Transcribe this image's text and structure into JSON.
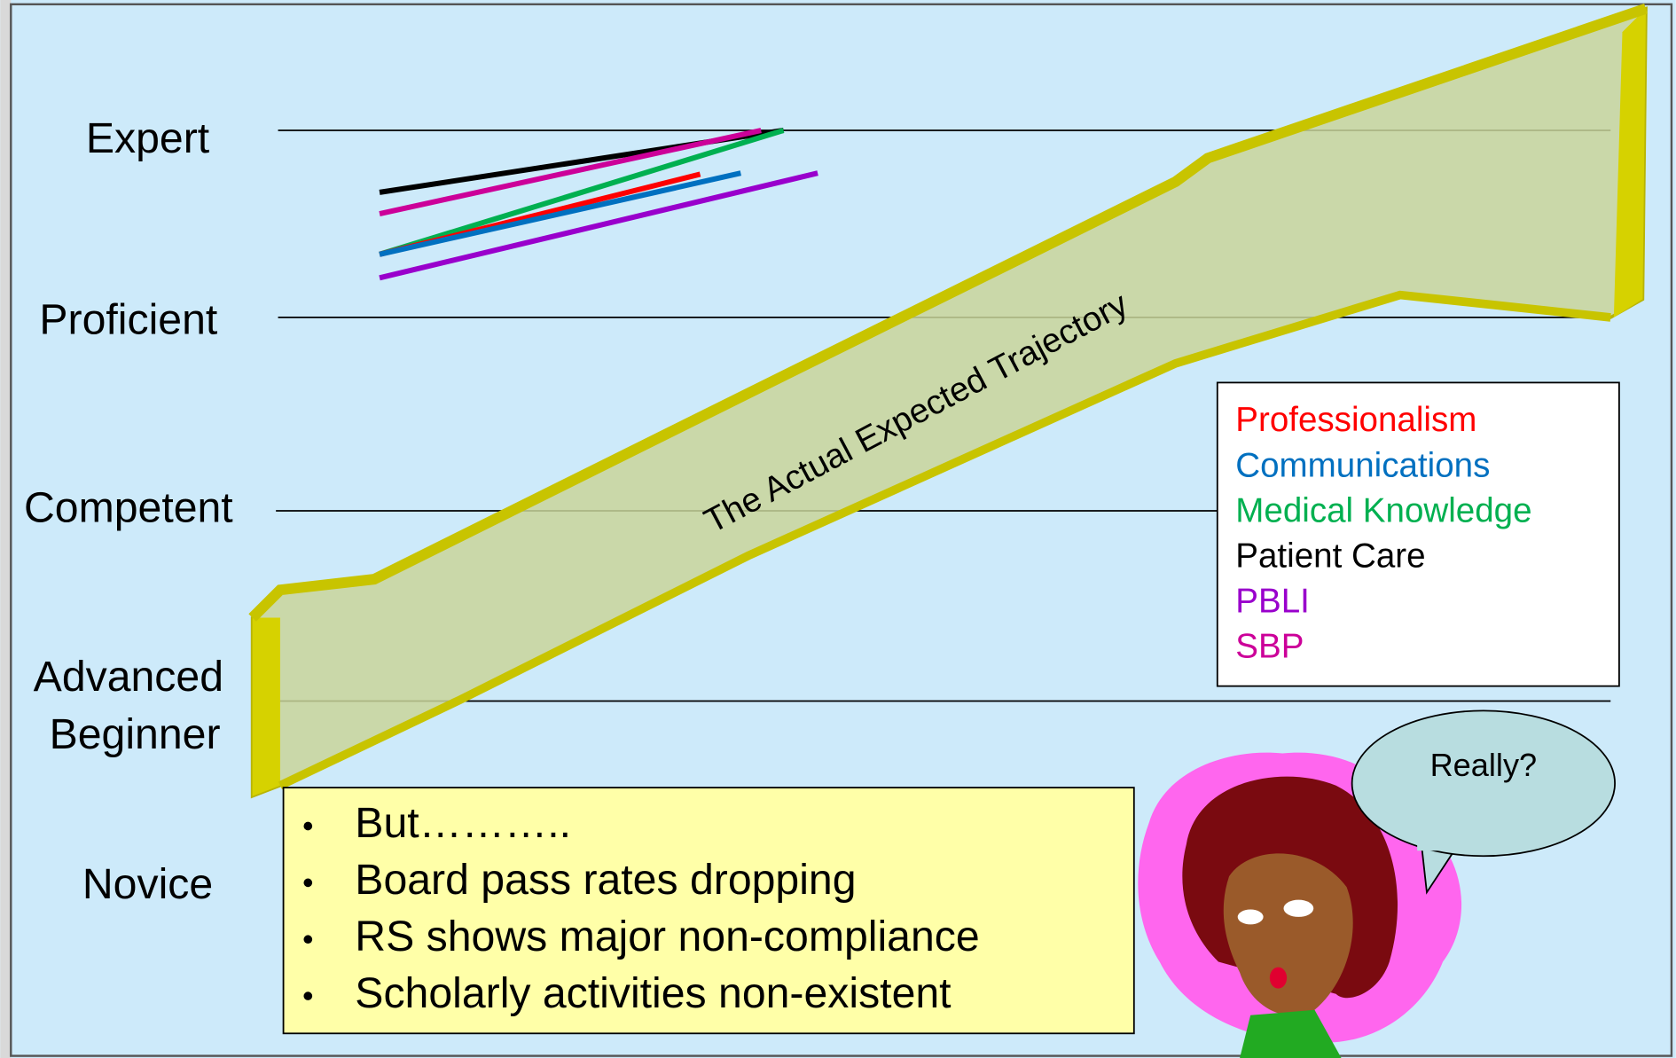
{
  "levels": [
    "Expert",
    "Proficient",
    "Competent",
    "Advanced",
    "Beginner",
    "Novice"
  ],
  "trajectory_label": "The Actual Expected Trajectory",
  "legend": [
    {
      "label": "Professionalism",
      "color": "#ff0000"
    },
    {
      "label": "Communications",
      "color": "#0070c0"
    },
    {
      "label": "Medical Knowledge",
      "color": "#00b050"
    },
    {
      "label": "Patient Care",
      "color": "#000000"
    },
    {
      "label": "PBLI",
      "color": "#9900cc"
    },
    {
      "label": "SBP",
      "color": "#cc0099"
    }
  ],
  "bullets": [
    "But………..",
    "Board pass rates dropping",
    "RS shows major non-compliance",
    "Scholarly activities non-existent"
  ],
  "speech_bubble": "Really?"
}
